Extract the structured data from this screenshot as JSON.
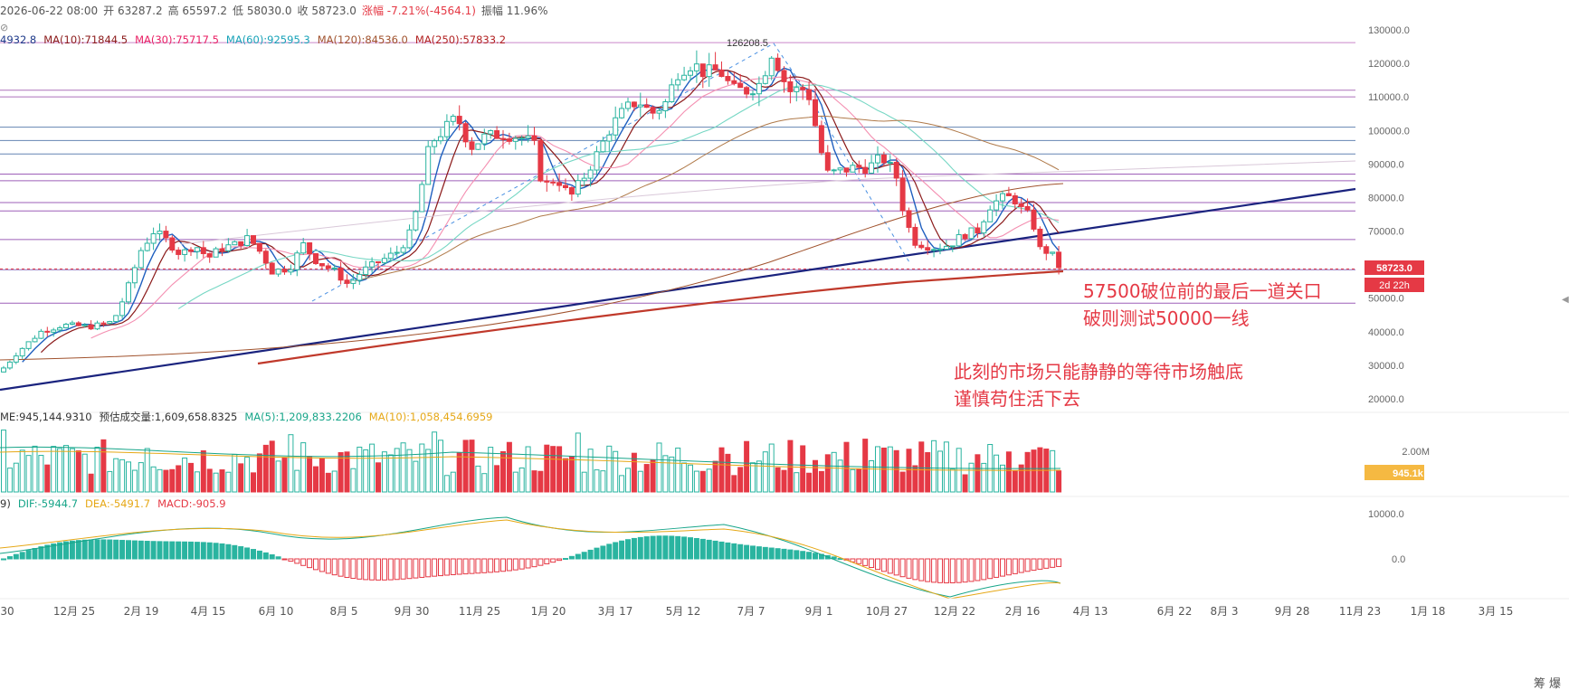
{
  "header": {
    "date": "2026-06-22 08:00",
    "open_label": "开",
    "open": "63287.2",
    "high_label": "高",
    "high": "65597.2",
    "low_label": "低",
    "low": "58030.0",
    "close_label": "收",
    "close": "58723.0",
    "change_label": "涨幅",
    "change": "-7.21%(-4564.1)",
    "amplitude_label": "振幅",
    "amplitude": "11.96%",
    "eye_icon": "eye-slash-icon"
  },
  "ma_legend": [
    {
      "text": "4932.8",
      "color": "#1e3a8a"
    },
    {
      "text": "MA(10):71844.5",
      "color": "#8b1a1a"
    },
    {
      "text": "MA(30):75717.5",
      "color": "#e91e63"
    },
    {
      "text": "MA(60):92595.3",
      "color": "#17a2b8"
    },
    {
      "text": "MA(120):84536.0",
      "color": "#a0522d"
    },
    {
      "text": "MA(250):57833.2",
      "color": "#b22222"
    }
  ],
  "volume_legend": [
    {
      "text": "ME:945,144.9310",
      "color": "#333333"
    },
    {
      "text": "预估成交量:1,609,658.8325",
      "color": "#333333"
    },
    {
      "text": "MA(5):1,209,833.2206",
      "color": "#17a589"
    },
    {
      "text": "MA(10):1,058,454.6959",
      "color": "#e6a817"
    }
  ],
  "macd_legend": [
    {
      "text": "9)",
      "color": "#333333"
    },
    {
      "text": "DIF:-5944.7",
      "color": "#17a589"
    },
    {
      "text": "DEA:-5491.7",
      "color": "#e6a817"
    },
    {
      "text": "MACD:-905.9",
      "color": "#e53945"
    }
  ],
  "annotations": {
    "line1": "57500破位前的最后一道关口",
    "line2": "破则测试50000一线",
    "line3": "此刻的市场只能静静的等待市场触底",
    "line4": "谨慎苟住活下去",
    "peak_label": "126208.5"
  },
  "price_tag": {
    "value": "58723.0",
    "countdown": "2d 22h",
    "color": "#e53945"
  },
  "volume_tag": {
    "value": "945.1k",
    "color": "#f5b942"
  },
  "volume_axis_label": "2.00M",
  "price_axis_labels": [
    "130000.0",
    "120000.0",
    "110000.0",
    "100000.0",
    "90000.0",
    "80000.0",
    "70000.0",
    "60000.0",
    "50000.0",
    "40000.0",
    "30000.0",
    "20000.0"
  ],
  "macd_axis_labels": [
    "10000.0",
    "0.0"
  ],
  "x_labels": [
    "30",
    "12月 25",
    "2月 19",
    "4月 15",
    "6月 10",
    "8月 5",
    "9月 30",
    "11月 25",
    "1月 20",
    "3月 17",
    "5月 12",
    "7月 7",
    "9月 1",
    "10月 27",
    "12月 22",
    "2月 16",
    "4月 13",
    "6月 22",
    "8月 3",
    "9月 28",
    "11月 23",
    "1月 18",
    "3月 15"
  ],
  "corner_label": "筹 爆",
  "colors": {
    "up": "#2ab4a0",
    "down": "#e53945",
    "bg": "#ffffff"
  },
  "chart_data": {
    "type": "candlestick",
    "timeframe": "weekly",
    "y_range": [
      20000,
      130000
    ],
    "peak": 126208.5,
    "last_close": 58723.0,
    "horizontal_levels": [
      126208.5,
      112000,
      110000,
      101000,
      97000,
      93000,
      87000,
      85000,
      78500,
      76000,
      67500,
      58500,
      48500
    ],
    "close_points": [
      [
        0,
        28000
      ],
      [
        20,
        34000
      ],
      [
        45,
        40000
      ],
      [
        70,
        42000
      ],
      [
        100,
        41500
      ],
      [
        125,
        43000
      ],
      [
        140,
        52000
      ],
      [
        155,
        64000
      ],
      [
        170,
        70000
      ],
      [
        185,
        67000
      ],
      [
        200,
        63000
      ],
      [
        215,
        66000
      ],
      [
        230,
        62000
      ],
      [
        245,
        65000
      ],
      [
        260,
        66000
      ],
      [
        275,
        68000
      ],
      [
        290,
        63000
      ],
      [
        300,
        58000
      ],
      [
        320,
        59000
      ],
      [
        335,
        66000
      ],
      [
        350,
        61000
      ],
      [
        370,
        58000
      ],
      [
        385,
        54000
      ],
      [
        400,
        58000
      ],
      [
        420,
        61000
      ],
      [
        440,
        64000
      ],
      [
        455,
        70000
      ],
      [
        465,
        82000
      ],
      [
        475,
        96000
      ],
      [
        490,
        100000
      ],
      [
        505,
        104000
      ],
      [
        520,
        95000
      ],
      [
        535,
        98000
      ],
      [
        555,
        99000
      ],
      [
        575,
        98000
      ],
      [
        590,
        96000
      ],
      [
        600,
        83000
      ],
      [
        615,
        86000
      ],
      [
        630,
        80000
      ],
      [
        645,
        86000
      ],
      [
        660,
        93000
      ],
      [
        675,
        101000
      ],
      [
        690,
        106000
      ],
      [
        705,
        109000
      ],
      [
        720,
        105000
      ],
      [
        735,
        108000
      ],
      [
        750,
        118000
      ],
      [
        765,
        120000
      ],
      [
        780,
        117000
      ],
      [
        795,
        118000
      ],
      [
        810,
        112000
      ],
      [
        825,
        112000
      ],
      [
        840,
        114000
      ],
      [
        855,
        125000
      ],
      [
        862,
        117000
      ],
      [
        875,
        111000
      ],
      [
        885,
        113000
      ],
      [
        895,
        110000
      ],
      [
        905,
        96000
      ],
      [
        915,
        87000
      ],
      [
        930,
        88000
      ],
      [
        945,
        89000
      ],
      [
        960,
        89000
      ],
      [
        975,
        92000
      ],
      [
        990,
        87000
      ],
      [
        1000,
        74000
      ],
      [
        1010,
        67000
      ],
      [
        1020,
        66000
      ],
      [
        1035,
        65000
      ],
      [
        1050,
        66000
      ],
      [
        1065,
        69000
      ],
      [
        1080,
        70000
      ],
      [
        1095,
        78000
      ],
      [
        1110,
        80000
      ],
      [
        1120,
        80000
      ],
      [
        1130,
        76000
      ],
      [
        1140,
        74000
      ],
      [
        1150,
        64000
      ],
      [
        1160,
        64000
      ],
      [
        1172,
        58723
      ]
    ],
    "ma_series": [
      {
        "name": "MA(10)",
        "value": 71844.5
      },
      {
        "name": "MA(30)",
        "value": 75717.5
      },
      {
        "name": "MA(60)",
        "value": 92595.3
      },
      {
        "name": "MA(120)",
        "value": 84536.0
      },
      {
        "name": "MA(250)",
        "value": 57833.2
      }
    ],
    "volume": {
      "current": 945144.931,
      "estimated": 1609658.8325,
      "ma5": 1209833.2206,
      "ma10": 1058454.6959
    },
    "macd": {
      "dif": -5944.7,
      "dea": -5491.7,
      "macd": -905.9
    }
  }
}
